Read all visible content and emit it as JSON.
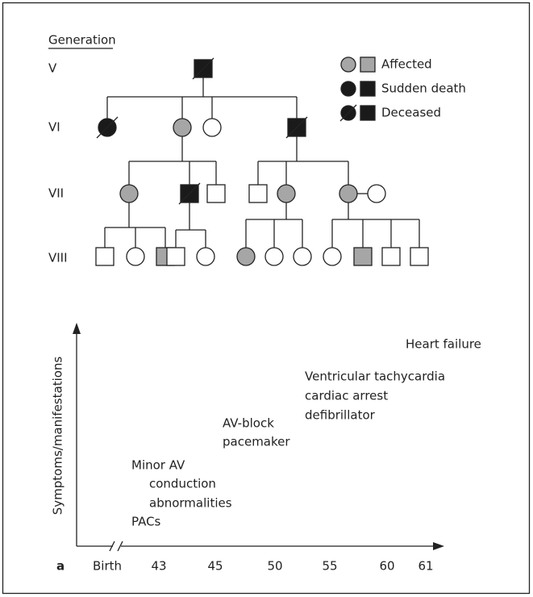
{
  "pedigree": {
    "heading": "Generation",
    "generations": [
      "V",
      "VI",
      "VII",
      "VIII"
    ],
    "legend": [
      "Affected",
      "Sudden death",
      "Deceased"
    ]
  },
  "timeline": {
    "panel_label": "a",
    "y_axis_label": "Symptoms/manifestations",
    "x_labels": [
      "Birth",
      "43",
      "45",
      "50",
      "55",
      "60",
      "61"
    ],
    "events": [
      {
        "lines": [
          "Minor AV",
          "conduction",
          "abnormalities",
          "PACs"
        ]
      },
      {
        "lines": [
          "AV-block",
          "pacemaker"
        ]
      },
      {
        "lines": [
          "Ventricular tachycardia",
          "cardiac arrest",
          "defibrillator"
        ]
      },
      {
        "lines": [
          "Heart failure"
        ]
      }
    ]
  }
}
